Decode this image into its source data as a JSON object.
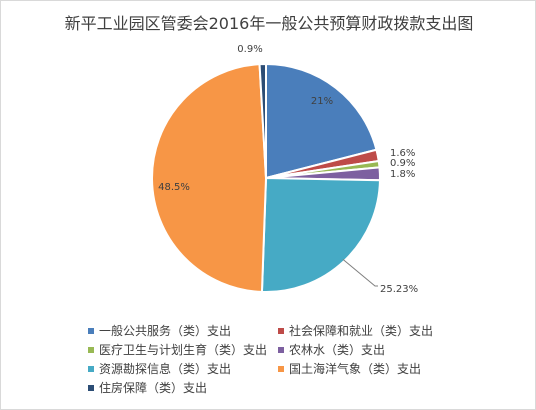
{
  "chart_data": {
    "type": "pie",
    "title": "新平工业园区管委会2016年一般公共预算财政拨款支出图",
    "legend_position": "bottom",
    "slices": [
      {
        "label": "一般公共服务（类）支出",
        "value": 21,
        "data_label": "21%",
        "color": "#4a7ebb"
      },
      {
        "label": "社会保障和就业（类）支出",
        "value": 1.6,
        "data_label": "1.6%",
        "color": "#be4b48"
      },
      {
        "label": "医疗卫生与计划生育（类）支出",
        "value": 0.9,
        "data_label": "0.9%",
        "color": "#98b954"
      },
      {
        "label": "农林水（类）支出",
        "value": 1.8,
        "data_label": "1.8%",
        "color": "#7d60a0"
      },
      {
        "label": "资源勘探信息（类）支出",
        "value": 25.23,
        "data_label": "25.23%",
        "color": "#46aac5"
      },
      {
        "label": "国土海洋气象（类）支出",
        "value": 48.5,
        "data_label": "48.5%",
        "color": "#f79646"
      },
      {
        "label": "住房保障（类）支出",
        "value": 0.9,
        "data_label": "0.9%",
        "color": "#2c4d75"
      }
    ]
  }
}
